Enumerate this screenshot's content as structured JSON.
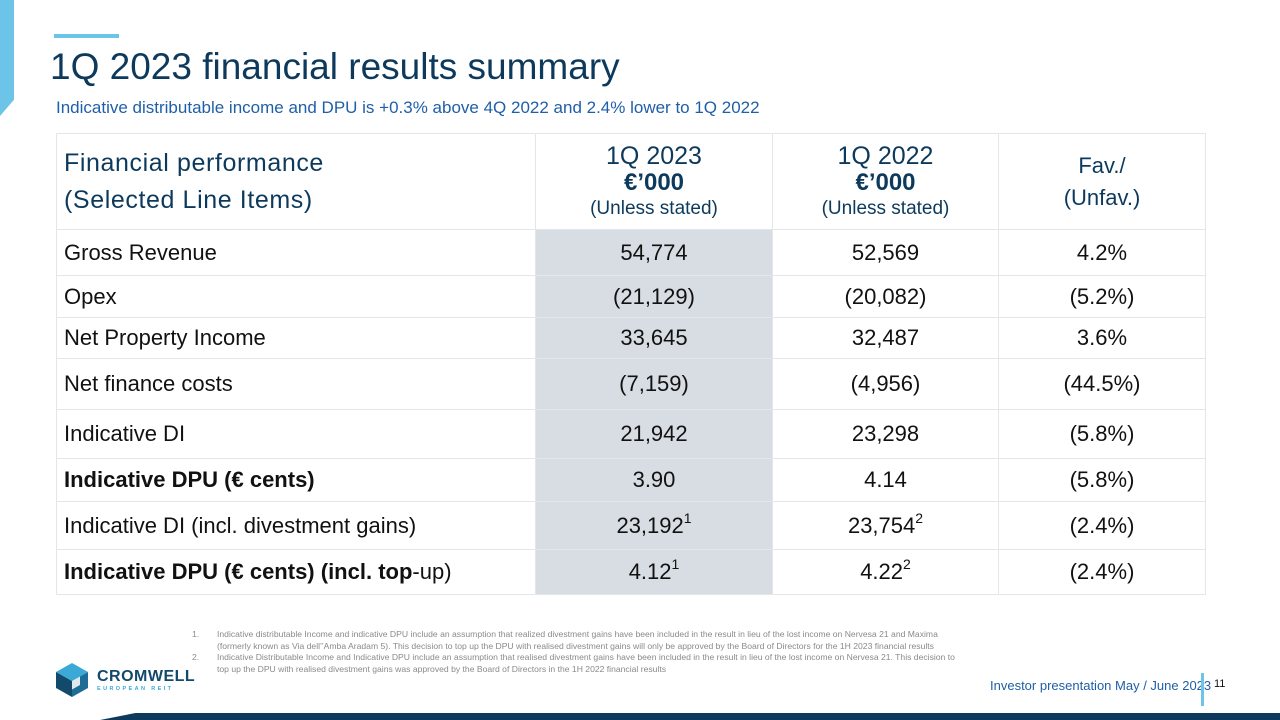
{
  "slide": {
    "title": "1Q 2023 financial results summary",
    "subtitle": "Indicative distributable income and DPU is +0.3% above 4Q 2022 and 2.4% lower to 1Q 2022",
    "page_number": "11",
    "presentation_label": "Investor presentation May / June 2023"
  },
  "table": {
    "header": {
      "col1_line1": "Financial performance",
      "col1_line2": "(Selected Line Items)",
      "col2_period": "1Q 2023",
      "col2_unit": "€’000",
      "col2_note": "(Unless stated)",
      "col3_period": "1Q 2022",
      "col3_unit": "€’000",
      "col3_note": "(Unless stated)",
      "col4_line1": "Fav./",
      "col4_line2": "(Unfav.)"
    },
    "rows": [
      {
        "label": "Gross Revenue",
        "q1_2023": "54,774",
        "q1_2022": "52,569",
        "fav": "4.2%"
      },
      {
        "label": "Opex",
        "q1_2023": "(21,129)",
        "q1_2022": "(20,082)",
        "fav": "(5.2%)"
      },
      {
        "label": "Net Property Income",
        "q1_2023": "33,645",
        "q1_2022": "32,487",
        "fav": "3.6%"
      },
      {
        "label": "Net finance costs",
        "q1_2023": "(7,159)",
        "q1_2022": "(4,956)",
        "fav": "(44.5%)"
      },
      {
        "label": "Indicative DI",
        "q1_2023": "21,942",
        "q1_2022": "23,298",
        "fav": "(5.8%)"
      },
      {
        "label": "Indicative DPU (€ cents)",
        "q1_2023": "3.90",
        "q1_2022": "4.14",
        "fav": "(5.8%)"
      },
      {
        "label": "Indicative DI (incl. divestment gains)",
        "q1_2023": "23,192",
        "q1_2023_note": "1",
        "q1_2022": "23,754",
        "q1_2022_note": "2",
        "fav": "(2.4%)"
      },
      {
        "label_bold": "Indicative DPU (€ cents) (incl. top",
        "label_rest": "-up)",
        "q1_2023": "4.12",
        "q1_2023_note": "1",
        "q1_2022": "4.22",
        "q1_2022_note": "2",
        "fav": "(2.4%)"
      }
    ]
  },
  "footnotes": [
    {
      "num": "1.",
      "text": "Indicative distributable Income and indicative DPU include an assumption that realized divestment gains have been included in the result in lieu of the lost income on Nervesa 21 and Maxima (formerly known as Via dell’’Amba Aradam 5). This decision to top up the DPU with realised divestment gains will only be approved by the Board of Directors for the 1H 2023 financial results"
    },
    {
      "num": "2.",
      "text": "Indicative Distributable Income and Indicative DPU include an assumption that realised divestment gains have been included in the result in lieu of the lost income on Nervesa 21. This decision to top up the DPU with realised divestment gains was approved by the Board of Directors in the 1H 2022 financial results"
    }
  ],
  "logo": {
    "name": "CROMWELL",
    "sub": "EUROPEAN REIT"
  },
  "colors": {
    "navy": "#0d3a5c",
    "accent_blue": "#6cc4e8",
    "link_blue": "#1f5fa8",
    "highlight_column": "#d7dde3"
  }
}
